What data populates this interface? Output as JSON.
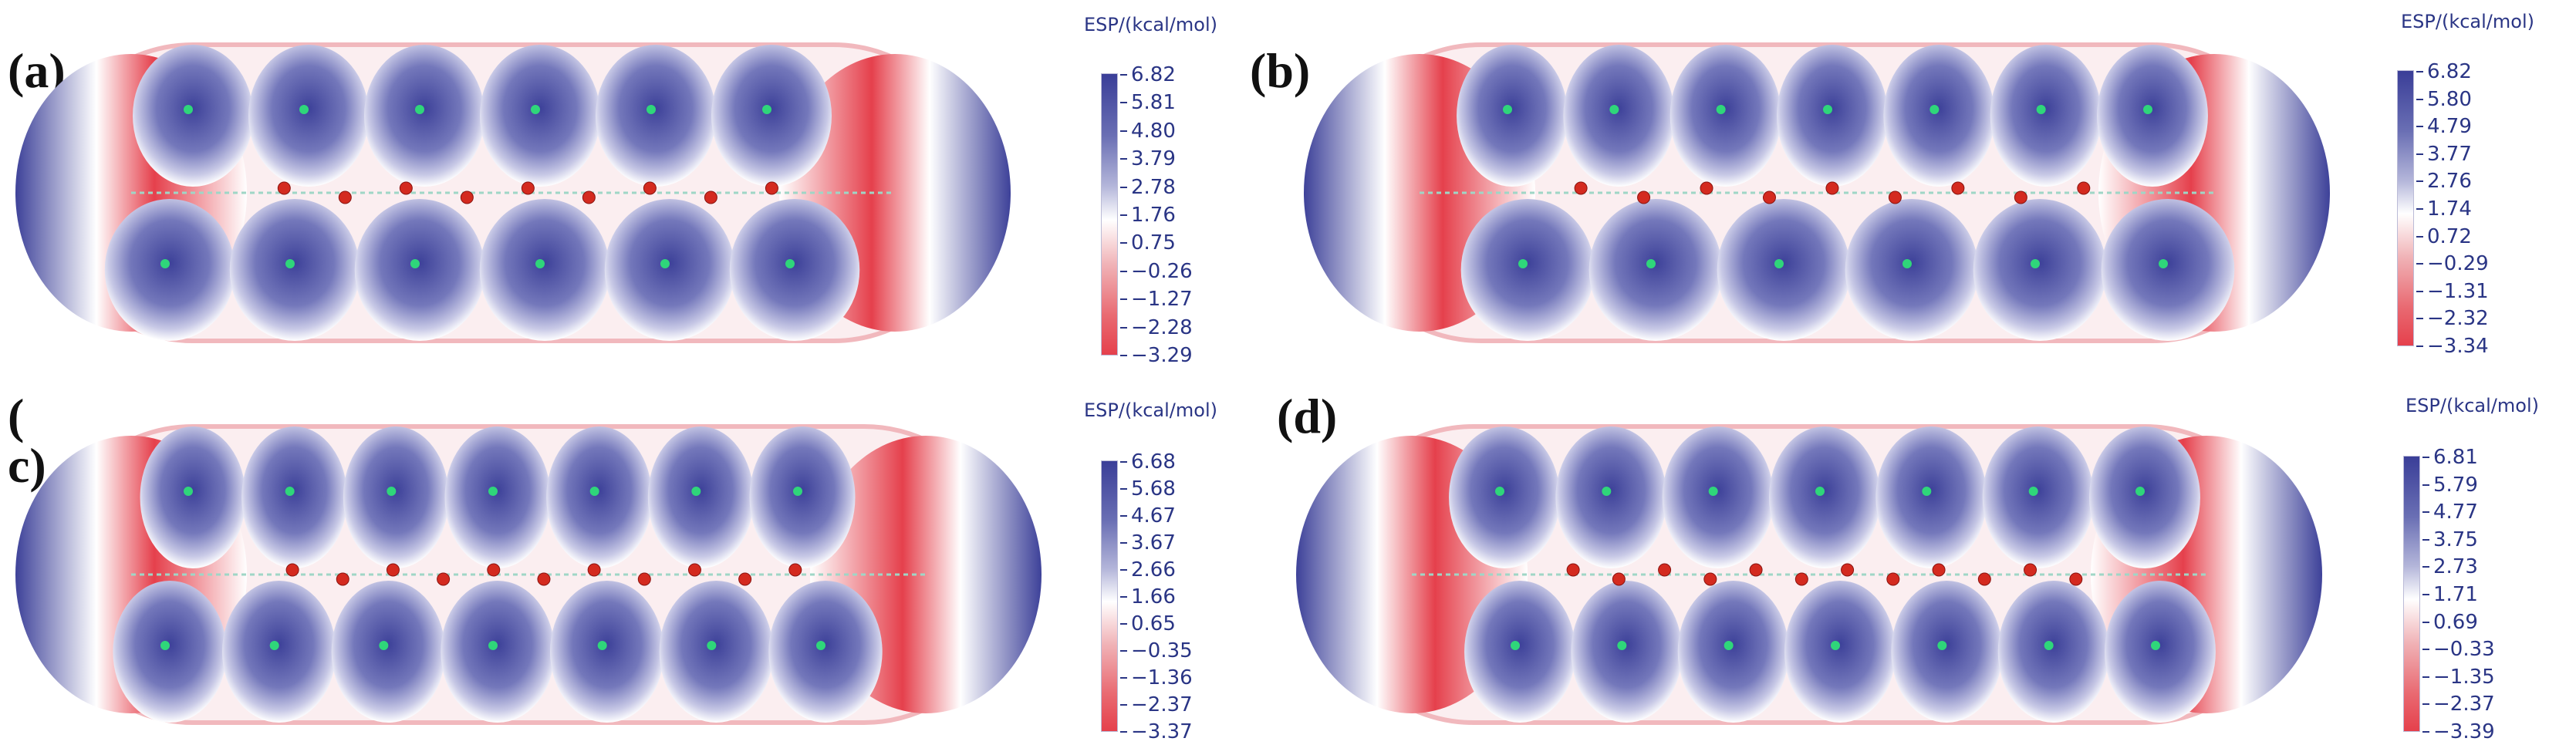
{
  "colors": {
    "positive": "#3b3f98",
    "neutral": "#ffffff",
    "negative": "#e5404c",
    "atom_oxygen": "#d42a1f",
    "atom_green": "#2fd67a"
  },
  "panels": [
    {
      "label": "(a)",
      "legend_title": "ESP/(kcal/mol)",
      "ticks": [
        "6.82",
        "5.81",
        "4.80",
        "3.79",
        "2.78",
        "1.76",
        "0.75",
        "−0.26",
        "−1.27",
        "−2.28",
        "−3.29"
      ],
      "top_beads": 6,
      "bottom_beads": 6,
      "oxygen_count": 9,
      "orientation": "a"
    },
    {
      "label": "(b)",
      "legend_title": "ESP/(kcal/mol)",
      "ticks": [
        "6.82",
        "5.80",
        "4.79",
        "3.77",
        "2.76",
        "1.74",
        "0.72",
        "−0.29",
        "−1.31",
        "−2.32",
        "−3.34"
      ],
      "top_beads": 7,
      "bottom_beads": 6,
      "oxygen_count": 9,
      "orientation": "b"
    },
    {
      "label": "( c)",
      "legend_title": "ESP/(kcal/mol)",
      "ticks": [
        "6.68",
        "5.68",
        "4.67",
        "3.67",
        "2.66",
        "1.66",
        "0.65",
        "−0.35",
        "−1.36",
        "−2.37",
        "−3.37"
      ],
      "top_beads": 7,
      "bottom_beads": 7,
      "oxygen_count": 11,
      "orientation": "a"
    },
    {
      "label": "(d)",
      "legend_title": "ESP/(kcal/mol)",
      "ticks": [
        "6.81",
        "5.79",
        "4.77",
        "3.75",
        "2.73",
        "1.71",
        "0.69",
        "−0.33",
        "−1.35",
        "−2.37",
        "−3.39"
      ],
      "top_beads": 7,
      "bottom_beads": 7,
      "oxygen_count": 12,
      "orientation": "b"
    }
  ]
}
